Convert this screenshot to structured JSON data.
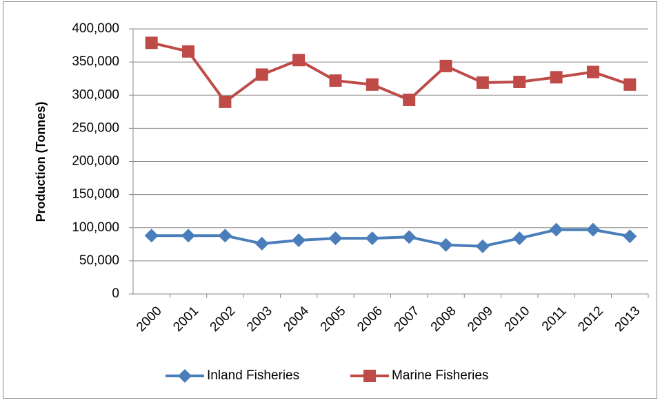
{
  "chart_data": {
    "type": "line",
    "y_label": "Production (Tonnes)",
    "categories": [
      "2000",
      "2001",
      "2002",
      "2003",
      "2004",
      "2005",
      "2006",
      "2007",
      "2008",
      "2009",
      "2010",
      "2011",
      "2012",
      "2013"
    ],
    "series": [
      {
        "name": "Inland Fisheries",
        "color": "#4a7ebb",
        "marker": "diamond",
        "values": [
          88000,
          88000,
          88000,
          76000,
          81000,
          84000,
          84000,
          86000,
          74000,
          72000,
          84000,
          97000,
          97000,
          87000
        ]
      },
      {
        "name": "Marine Fisheries",
        "color": "#be4b48",
        "marker": "square",
        "values": [
          379000,
          366000,
          290000,
          331000,
          353000,
          322000,
          316000,
          293000,
          344000,
          319000,
          320000,
          327000,
          335000,
          316000
        ]
      }
    ],
    "ylim": [
      0,
      400000
    ],
    "yticks": [
      0,
      {
        "value": 50000,
        "label": "50,000"
      },
      {
        "value": 100000,
        "label": "100,000"
      },
      {
        "value": 150000,
        "label": "150,000"
      },
      {
        "value": 200000,
        "label": "200,000"
      },
      {
        "value": 250000,
        "label": "250,000"
      },
      {
        "value": 300000,
        "label": "300,000"
      },
      {
        "value": 350000,
        "label": "350,000"
      },
      {
        "value": 400000,
        "label": "400,000"
      }
    ],
    "grid": true,
    "legend": "bottom"
  }
}
